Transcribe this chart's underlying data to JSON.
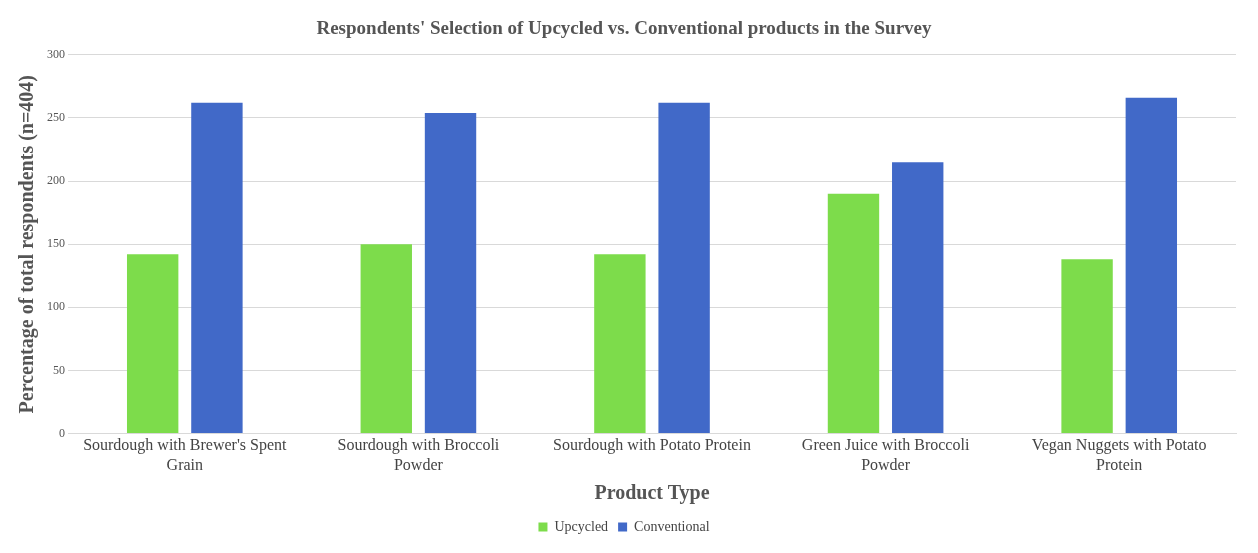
{
  "chart_data": {
    "type": "bar",
    "title": "Respondents' Selection of Upcycled vs. Conventional products in the Survey",
    "xlabel": "Product Type",
    "ylabel": "Percentage of total respondents (n=404)",
    "categories": [
      "Sourdough with Brewer's Spent Grain",
      "Sourdough with Broccoli Powder",
      "Sourdough with Potato Protein",
      "Green Juice with Broccoli Powder",
      "Vegan Nuggets with Potato Protein"
    ],
    "series": [
      {
        "name": "Upcycled",
        "color": "#7ddc4b",
        "values": [
          142,
          150,
          142,
          190,
          138
        ]
      },
      {
        "name": "Conventional",
        "color": "#4169c8",
        "values": [
          262,
          254,
          262,
          215,
          266
        ]
      }
    ],
    "ylim": [
      0,
      300
    ],
    "yticks": [
      0,
      50,
      100,
      150,
      200,
      250,
      300
    ],
    "grid": "y",
    "legend": "bottom"
  }
}
